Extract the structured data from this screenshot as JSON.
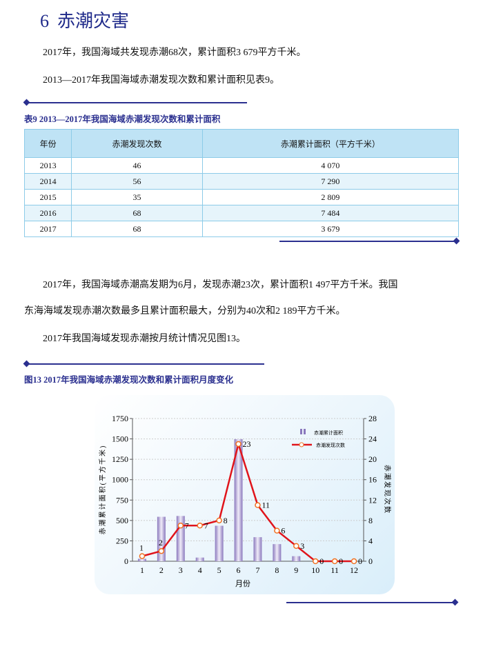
{
  "heading": {
    "number": "6",
    "title": "赤潮灾害"
  },
  "paragraphs": [
    "2017年，我国海域共发现赤潮68次，累计面积3 679平方千米。",
    "2013—2017年我国海域赤潮发现次数和累计面积见表9。"
  ],
  "table": {
    "caption": "表9  2013—2017年我国海域赤潮发现次数和累计面积",
    "headers": [
      "年份",
      "赤潮发现次数",
      "赤潮累计面积（平方千米）"
    ],
    "rows": [
      [
        "2013",
        "46",
        "4 070"
      ],
      [
        "2014",
        "56",
        "7 290"
      ],
      [
        "2015",
        "35",
        "2 809"
      ],
      [
        "2016",
        "68",
        "7 484"
      ],
      [
        "2017",
        "68",
        "3 679"
      ]
    ]
  },
  "paragraphs2": [
    "2017年，我国海域赤潮高发期为6月，发现赤潮23次，累计面积1 497平方千米。我国",
    "东海海域发现赤潮次数最多且累计面积最大，分别为40次和2 189平方千米。",
    "2017年我国海域发现赤潮按月统计情况见图13。"
  ],
  "figure_caption": "图13  2017年我国海域赤潮发现次数和累计面积月度变化",
  "chart_data": {
    "type": "bar+line",
    "categories": [
      "1",
      "2",
      "3",
      "4",
      "5",
      "6",
      "7",
      "8",
      "9",
      "10",
      "11",
      "12"
    ],
    "xlabel": "月份",
    "ylabel": "赤潮累计面积(平方千米)",
    "y2label": "赤潮发现次数",
    "ylim": [
      0,
      1750
    ],
    "yticks": [
      0,
      250,
      500,
      750,
      1000,
      1250,
      1500,
      1750
    ],
    "y2lim": [
      0,
      28
    ],
    "y2ticks": [
      0,
      4,
      8,
      12,
      16,
      20,
      24,
      28
    ],
    "series": [
      {
        "name": "赤潮累计面积",
        "type": "bar",
        "axis": "left",
        "color": "#9b8cc4",
        "values": [
          30,
          545,
          555,
          45,
          435,
          1497,
          295,
          210,
          62,
          0,
          0,
          0
        ]
      },
      {
        "name": "赤潮发现次数",
        "type": "line",
        "axis": "right",
        "color": "#e0141b",
        "values": [
          1,
          2,
          7,
          7,
          8,
          23,
          11,
          6,
          3,
          0,
          0,
          0
        ]
      }
    ],
    "legend": "top-right",
    "grid": true
  }
}
